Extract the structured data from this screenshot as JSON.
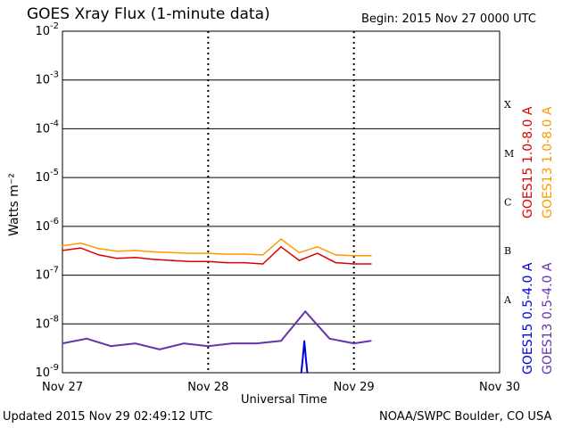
{
  "title": "GOES Xray Flux (1-minute data)",
  "begin_text": "Begin:  2015 Nov 27 0000 UTC",
  "footer": {
    "updated": "Updated 2015 Nov 29 02:49:12 UTC",
    "credit": "NOAA/SWPC Boulder, CO USA"
  },
  "chart_data": {
    "type": "line",
    "xlabel": "Universal Time",
    "ylabel": "Watts m⁻²",
    "yscale": "log",
    "ylim": [
      1e-09,
      0.01
    ],
    "xlim": [
      "2015-11-27 00:00",
      "2015-11-30 00:00"
    ],
    "x_tick_labels": [
      "Nov 27",
      "Nov 28",
      "Nov 29",
      "Nov 30"
    ],
    "y_tick_labels": [
      {
        "base": "10",
        "exp": "-9"
      },
      {
        "base": "10",
        "exp": "-8"
      },
      {
        "base": "10",
        "exp": "-7"
      },
      {
        "base": "10",
        "exp": "-6"
      },
      {
        "base": "10",
        "exp": "-5"
      },
      {
        "base": "10",
        "exp": "-4"
      },
      {
        "base": "10",
        "exp": "-3"
      },
      {
        "base": "10",
        "exp": "-2"
      }
    ],
    "flare_classes": [
      "A",
      "B",
      "C",
      "M",
      "X"
    ],
    "grid": true,
    "series": [
      {
        "name": "GOES15 1.0-8.0 A",
        "color": "#dd0000",
        "x": [
          "2015-11-27 00:00",
          "2015-11-27 03:00",
          "2015-11-27 06:00",
          "2015-11-27 09:00",
          "2015-11-27 12:00",
          "2015-11-27 15:00",
          "2015-11-27 18:00",
          "2015-11-27 21:00",
          "2015-11-28 00:00",
          "2015-11-28 03:00",
          "2015-11-28 06:00",
          "2015-11-28 09:00",
          "2015-11-28 12:00",
          "2015-11-28 15:00",
          "2015-11-28 18:00",
          "2015-11-28 21:00",
          "2015-11-29 00:00",
          "2015-11-29 02:49"
        ],
        "y": [
          3.2e-07,
          3.6e-07,
          2.6e-07,
          2.2e-07,
          2.3e-07,
          2.1e-07,
          2e-07,
          1.9e-07,
          1.9e-07,
          1.8e-07,
          1.8e-07,
          1.7e-07,
          3.8e-07,
          2e-07,
          2.8e-07,
          1.8e-07,
          1.7e-07,
          1.7e-07
        ]
      },
      {
        "name": "GOES13 1.0-8.0 A",
        "color": "#ff9900",
        "x": [
          "2015-11-27 00:00",
          "2015-11-27 03:00",
          "2015-11-27 06:00",
          "2015-11-27 09:00",
          "2015-11-27 12:00",
          "2015-11-27 15:00",
          "2015-11-27 18:00",
          "2015-11-27 21:00",
          "2015-11-28 00:00",
          "2015-11-28 03:00",
          "2015-11-28 06:00",
          "2015-11-28 09:00",
          "2015-11-28 12:00",
          "2015-11-28 15:00",
          "2015-11-28 18:00",
          "2015-11-28 21:00",
          "2015-11-29 00:00",
          "2015-11-29 02:49"
        ],
        "y": [
          4e-07,
          4.5e-07,
          3.5e-07,
          3.1e-07,
          3.2e-07,
          3e-07,
          2.9e-07,
          2.8e-07,
          2.8e-07,
          2.7e-07,
          2.7e-07,
          2.6e-07,
          5.5e-07,
          2.9e-07,
          3.8e-07,
          2.6e-07,
          2.5e-07,
          2.5e-07
        ]
      },
      {
        "name": "GOES15 0.5-4.0 A",
        "color": "#0000dd",
        "x": [
          "2015-11-28 15:20",
          "2015-11-28 15:35",
          "2015-11-28 15:50",
          "2015-11-28 16:05",
          "2015-11-28 16:20"
        ],
        "y": [
          1e-09,
          2e-09,
          4.5e-09,
          2e-09,
          1e-09
        ]
      },
      {
        "name": "GOES13 0.5-4.0 A",
        "color": "#6633aa",
        "x": [
          "2015-11-27 00:00",
          "2015-11-27 04:00",
          "2015-11-27 08:00",
          "2015-11-27 12:00",
          "2015-11-27 16:00",
          "2015-11-27 20:00",
          "2015-11-28 00:00",
          "2015-11-28 04:00",
          "2015-11-28 08:00",
          "2015-11-28 12:00",
          "2015-11-28 16:00",
          "2015-11-28 20:00",
          "2015-11-29 00:00",
          "2015-11-29 02:49"
        ],
        "y": [
          4e-09,
          5e-09,
          3.5e-09,
          4e-09,
          3e-09,
          4e-09,
          3.5e-09,
          4e-09,
          4e-09,
          4.5e-09,
          1.8e-08,
          5e-09,
          4e-09,
          4.5e-09
        ]
      }
    ]
  }
}
